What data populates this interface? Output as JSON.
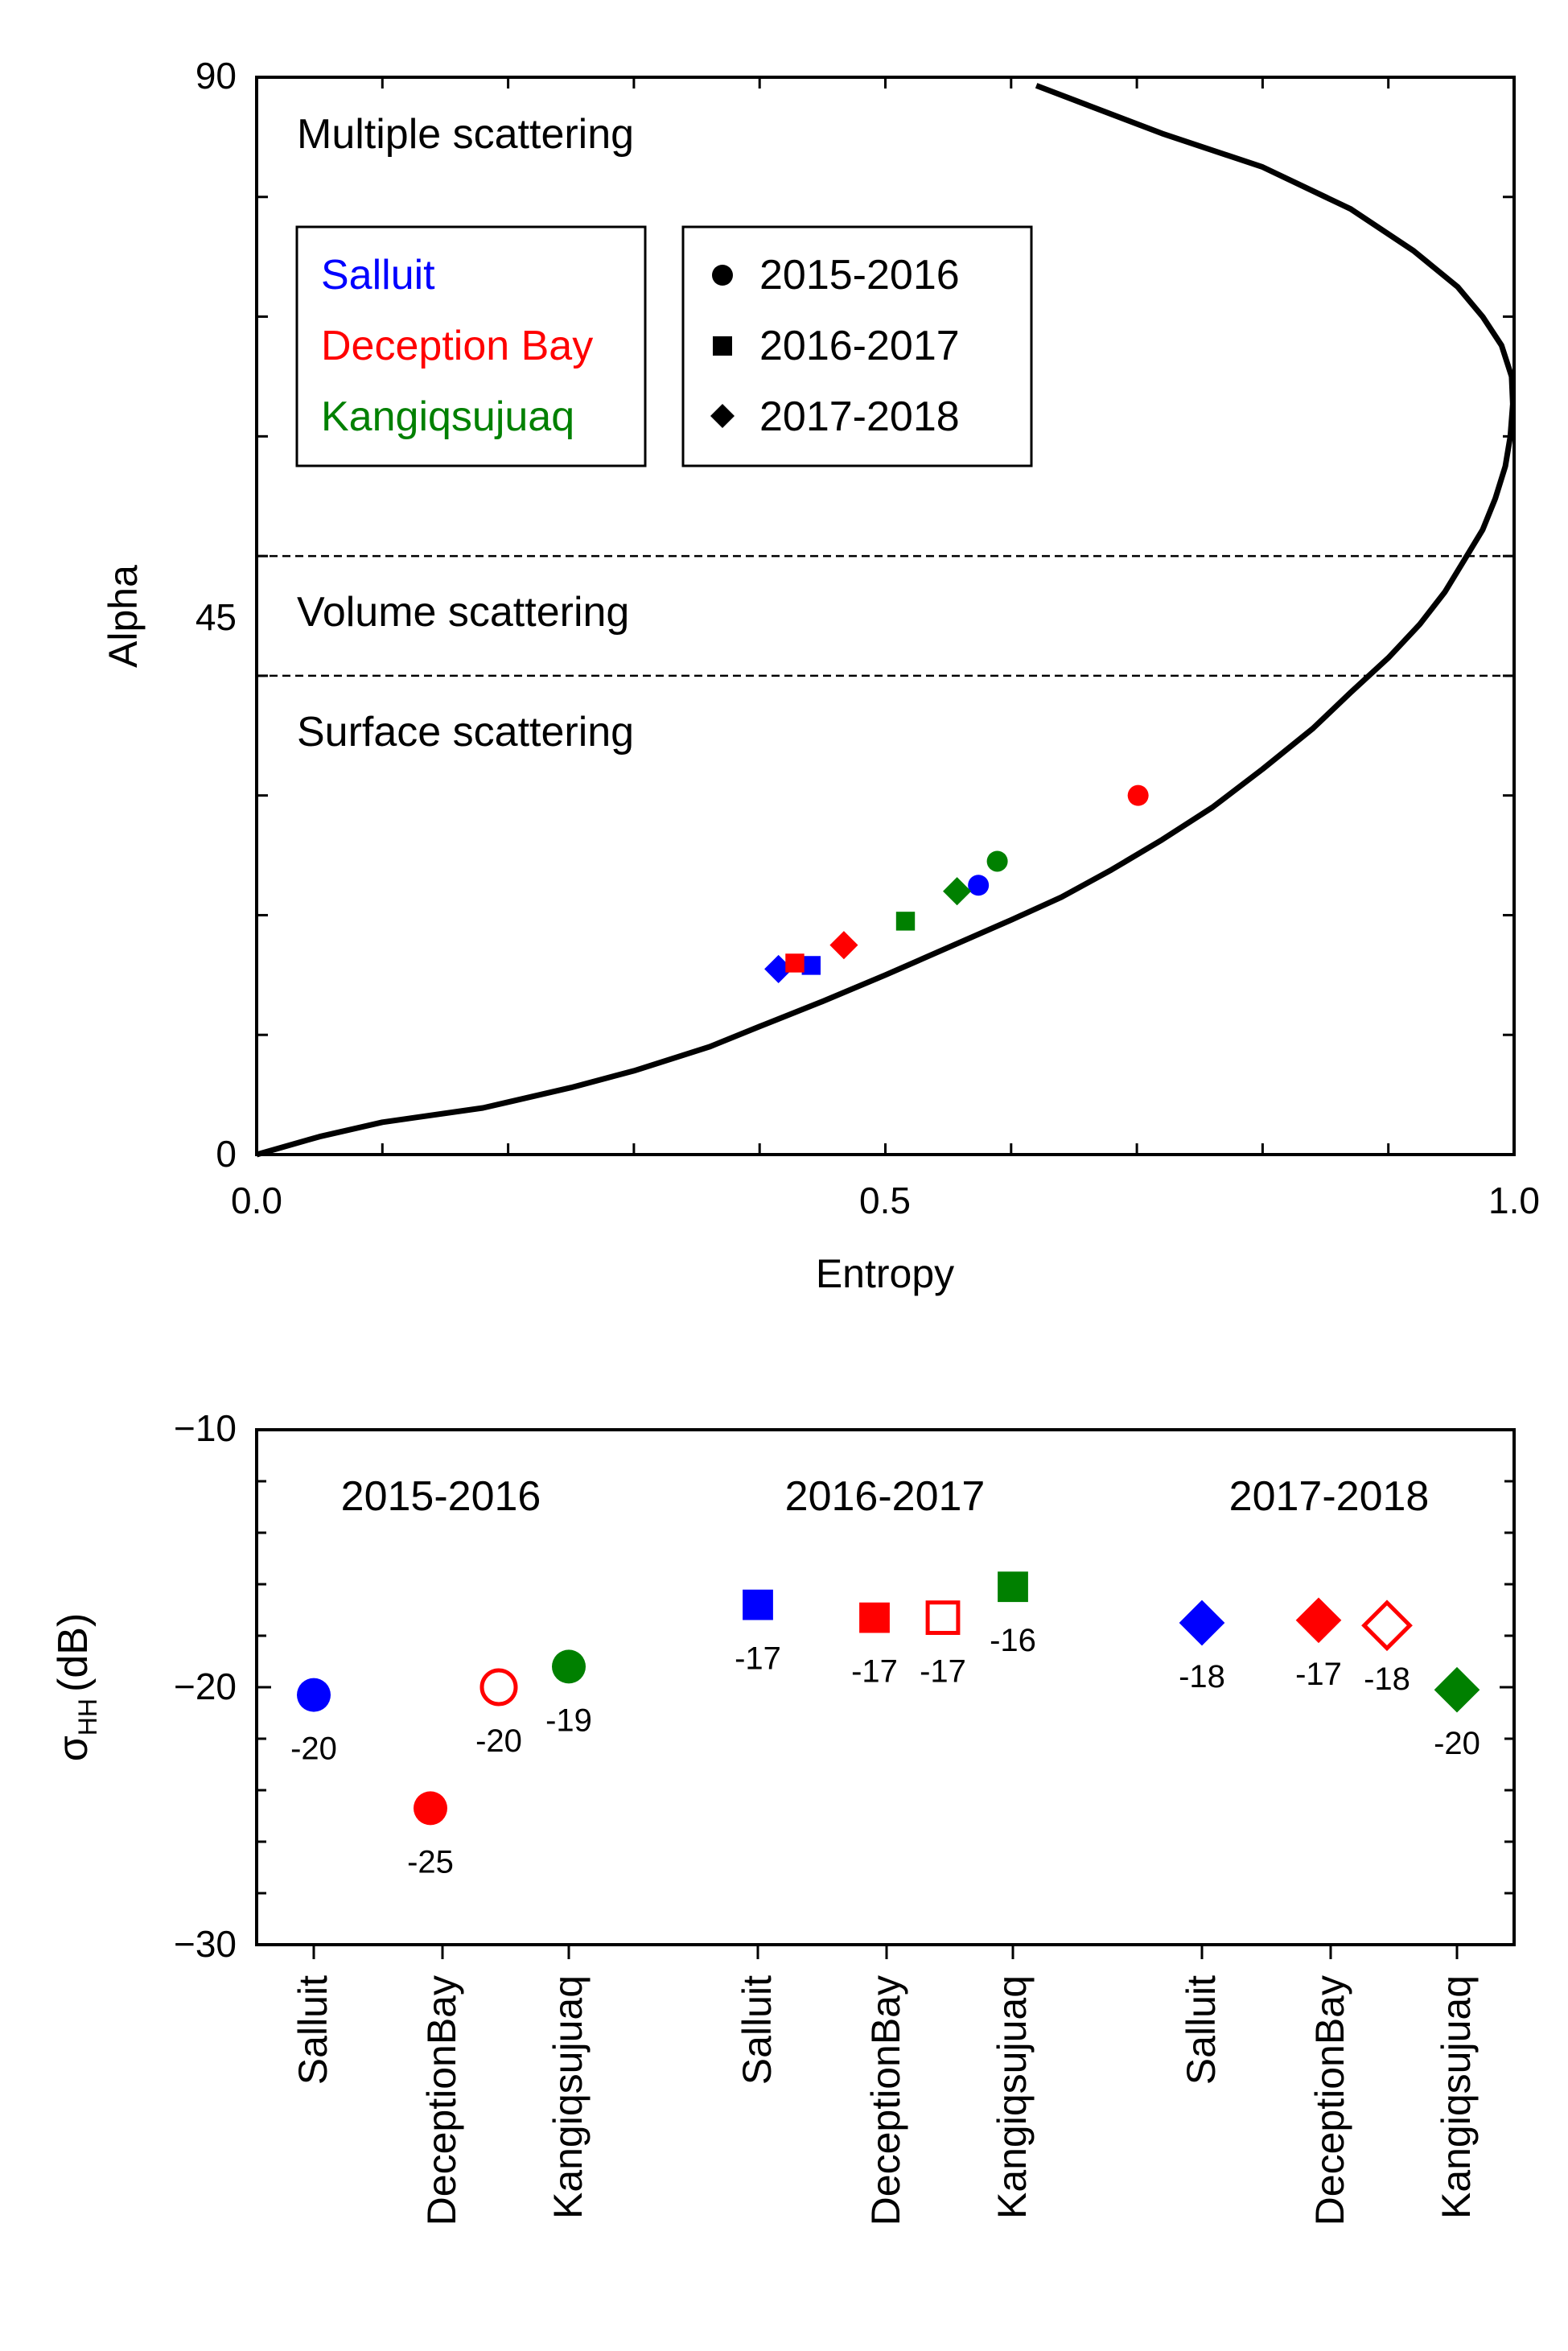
{
  "colors": {
    "Salluit": "#0000ff",
    "Deception Bay": "#ff0000",
    "Kangiqsujuaq": "#008000",
    "axis": "#000000"
  },
  "chart_data": [
    {
      "type": "scatter",
      "xlabel": "Entropy",
      "ylabel": "Alpha",
      "xlim": [
        0,
        1
      ],
      "ylim": [
        0,
        90
      ],
      "xticks": [
        "0.0",
        "0.5",
        "1.0"
      ],
      "yticks": [
        "0",
        "45",
        "90"
      ],
      "zone_boundaries": [
        40,
        50
      ],
      "zones": [
        "Multiple scattering",
        "Volume scattering",
        "Surface scattering"
      ],
      "site_legend": [
        "Salluit",
        "Deception Bay",
        "Kangiqsujuaq"
      ],
      "year_legend": [
        {
          "label": "2015-2016",
          "marker": "circle"
        },
        {
          "label": "2016-2017",
          "marker": "square"
        },
        {
          "label": "2017-2018",
          "marker": "diamond"
        }
      ],
      "boundary_curve": [
        [
          0.0,
          0.0
        ],
        [
          0.05,
          1.5
        ],
        [
          0.1,
          2.7
        ],
        [
          0.18,
          3.9
        ],
        [
          0.25,
          5.6
        ],
        [
          0.3,
          7.0
        ],
        [
          0.36,
          9.0
        ],
        [
          0.4,
          10.7
        ],
        [
          0.45,
          12.8
        ],
        [
          0.5,
          15.0
        ],
        [
          0.55,
          17.3
        ],
        [
          0.6,
          19.6
        ],
        [
          0.64,
          21.5
        ],
        [
          0.68,
          23.8
        ],
        [
          0.72,
          26.3
        ],
        [
          0.76,
          29.0
        ],
        [
          0.8,
          32.2
        ],
        [
          0.84,
          35.6
        ],
        [
          0.87,
          38.6
        ],
        [
          0.9,
          41.5
        ],
        [
          0.925,
          44.3
        ],
        [
          0.945,
          47.0
        ],
        [
          0.96,
          49.6
        ],
        [
          0.975,
          52.2
        ],
        [
          0.985,
          54.8
        ],
        [
          0.993,
          57.5
        ],
        [
          0.997,
          60.0
        ],
        [
          0.999,
          62.7
        ],
        [
          0.998,
          65.0
        ],
        [
          0.99,
          67.6
        ],
        [
          0.975,
          70.0
        ],
        [
          0.955,
          72.5
        ],
        [
          0.92,
          75.5
        ],
        [
          0.87,
          79.0
        ],
        [
          0.8,
          82.5
        ],
        [
          0.72,
          85.3
        ],
        [
          0.66,
          87.7
        ],
        [
          0.62,
          89.3
        ]
      ],
      "series": [
        {
          "site": "Salluit",
          "year": "2015-2016",
          "marker": "circle",
          "x": 0.574,
          "y": 22.5
        },
        {
          "site": "Salluit",
          "year": "2016-2017",
          "marker": "square",
          "x": 0.441,
          "y": 15.8
        },
        {
          "site": "Salluit",
          "year": "2017-2018",
          "marker": "diamond",
          "x": 0.415,
          "y": 15.5
        },
        {
          "site": "Deception Bay",
          "year": "2015-2016",
          "marker": "circle",
          "x": 0.701,
          "y": 30.0
        },
        {
          "site": "Deception Bay",
          "year": "2016-2017",
          "marker": "square",
          "x": 0.428,
          "y": 16.0
        },
        {
          "site": "Deception Bay",
          "year": "2017-2018",
          "marker": "diamond",
          "x": 0.467,
          "y": 17.5
        },
        {
          "site": "Kangiqsujuaq",
          "year": "2015-2016",
          "marker": "circle",
          "x": 0.589,
          "y": 24.5
        },
        {
          "site": "Kangiqsujuaq",
          "year": "2016-2017",
          "marker": "square",
          "x": 0.516,
          "y": 19.5
        },
        {
          "site": "Kangiqsujuaq",
          "year": "2017-2018",
          "marker": "diamond",
          "x": 0.557,
          "y": 22.0
        }
      ]
    },
    {
      "type": "scatter",
      "ylabel_main": "σ",
      "ylabel_sub": "HH",
      "ylabel_unit": "(dB)",
      "ylim": [
        -30,
        -10
      ],
      "yticks": [
        "−10",
        "−20",
        "−30"
      ],
      "groups": [
        "2015-2016",
        "2016-2017",
        "2017-2018"
      ],
      "categories": [
        "Salluit",
        "DeceptionBay",
        "Kangiqsujuaq"
      ],
      "points": [
        {
          "group": 0,
          "category": 0,
          "site": "Salluit",
          "marker": "circle",
          "filled": true,
          "value": -20.3,
          "label": "-20"
        },
        {
          "group": 0,
          "category": 1,
          "site": "Deception Bay",
          "marker": "circle",
          "filled": true,
          "value": -24.7,
          "label": "-25"
        },
        {
          "group": 0,
          "category": 1,
          "site": "Deception Bay",
          "marker": "circle",
          "filled": false,
          "value": -20.0,
          "label": "-20"
        },
        {
          "group": 0,
          "category": 2,
          "site": "Kangiqsujuaq",
          "marker": "circle",
          "filled": true,
          "value": -19.2,
          "label": "-19"
        },
        {
          "group": 1,
          "category": 0,
          "site": "Salluit",
          "marker": "square",
          "filled": true,
          "value": -16.8,
          "label": "-17"
        },
        {
          "group": 1,
          "category": 1,
          "site": "Deception Bay",
          "marker": "square",
          "filled": true,
          "value": -17.3,
          "label": "-17"
        },
        {
          "group": 1,
          "category": 1,
          "site": "Deception Bay",
          "marker": "square",
          "filled": false,
          "value": -17.3,
          "label": "-17"
        },
        {
          "group": 1,
          "category": 2,
          "site": "Kangiqsujuaq",
          "marker": "square",
          "filled": true,
          "value": -16.1,
          "label": "-16"
        },
        {
          "group": 2,
          "category": 0,
          "site": "Salluit",
          "marker": "diamond",
          "filled": true,
          "value": -17.5,
          "label": "-18"
        },
        {
          "group": 2,
          "category": 1,
          "site": "Deception Bay",
          "marker": "diamond",
          "filled": true,
          "value": -17.4,
          "label": "-17"
        },
        {
          "group": 2,
          "category": 1,
          "site": "Deception Bay",
          "marker": "diamond",
          "filled": false,
          "value": -17.6,
          "label": "-18"
        },
        {
          "group": 2,
          "category": 2,
          "site": "Kangiqsujuaq",
          "marker": "diamond",
          "filled": true,
          "value": -20.1,
          "label": "-20"
        }
      ]
    }
  ]
}
